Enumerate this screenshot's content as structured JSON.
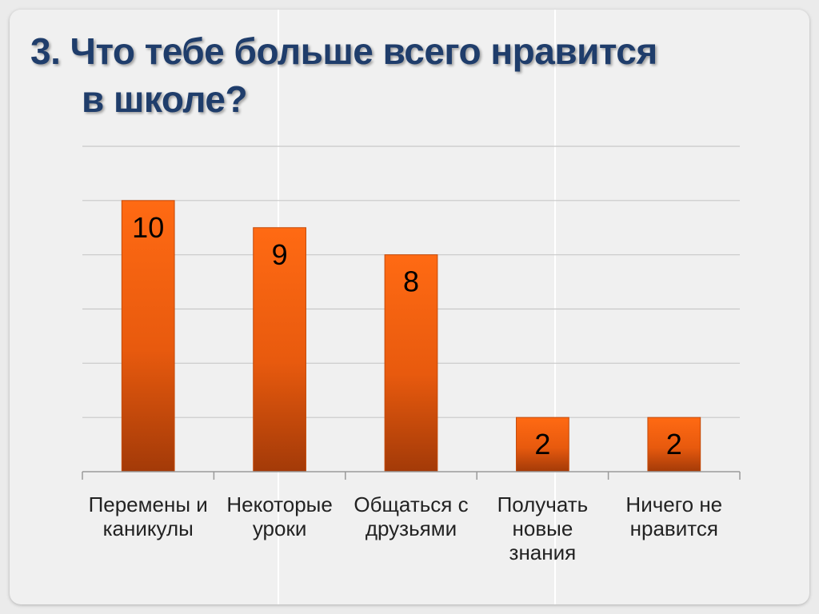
{
  "slide": {
    "title_line1": "3. Что тебе больше всего нравится",
    "title_line2": "в школе?"
  },
  "chart_data": {
    "type": "bar",
    "categories": [
      "Перемены и каникулы",
      "Некоторые уроки",
      "Общаться с друзьями",
      "Получать новые знания",
      "Ничего не нравится"
    ],
    "category_lines": [
      [
        "Перемены и",
        "каникулы"
      ],
      [
        "Некоторые",
        "уроки"
      ],
      [
        "Общаться с",
        "друзьями"
      ],
      [
        "Получать",
        "новые",
        "знания"
      ],
      [
        "Ничего не",
        "нравится"
      ]
    ],
    "values": [
      10,
      9,
      8,
      2,
      2
    ],
    "data_labels": [
      "10",
      "9",
      "8",
      "2",
      "2"
    ],
    "ylim": [
      0,
      12
    ],
    "y_gridlines": [
      2,
      4,
      6,
      8,
      10,
      12
    ],
    "grid": true,
    "legend": "none",
    "bar_color_top": "#ff6a13",
    "bar_color_bottom": "#a33a08"
  }
}
